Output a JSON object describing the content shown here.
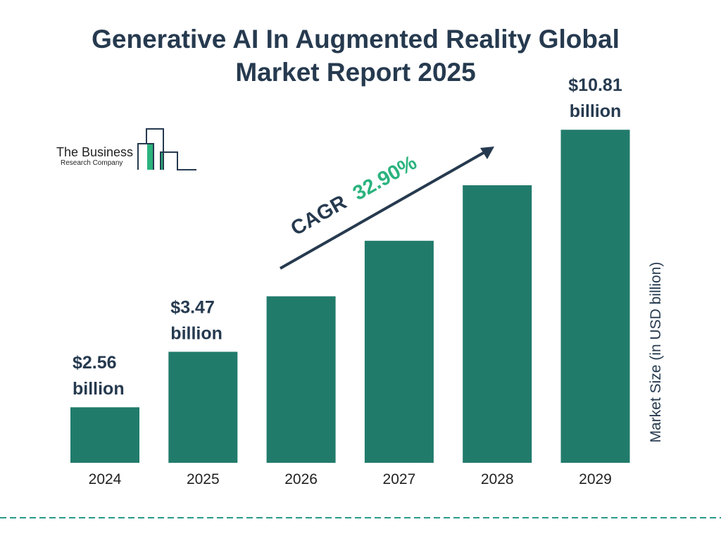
{
  "chart_data": {
    "type": "bar",
    "title": "Generative AI In Augmented Reality Global Market Report 2025",
    "title_lines": [
      "Generative AI In Augmented Reality Global",
      "Market Report 2025"
    ],
    "categories": [
      "2024",
      "2025",
      "2026",
      "2027",
      "2028",
      "2029"
    ],
    "values": [
      2.56,
      3.47,
      4.61,
      6.13,
      8.14,
      10.81
    ],
    "data_labels": [
      {
        "category": "2024",
        "value": "$2.56",
        "unit": "billion"
      },
      {
        "category": "2025",
        "value": "$3.47",
        "unit": "billion"
      },
      {
        "category": "2029",
        "value": "$10.81",
        "unit": "billion"
      }
    ],
    "ylabel": "Market Size (in USD billion)",
    "xlabel": "",
    "annotation": {
      "label": "CAGR",
      "value": "32.90%"
    },
    "grid": false,
    "colors": {
      "bar": "#217b6b",
      "text": "#263a4f",
      "cagr": "#2bb37e",
      "divider": "#2a9a8a"
    }
  },
  "logo": {
    "line1": "The Business",
    "line2": "Research Company"
  }
}
